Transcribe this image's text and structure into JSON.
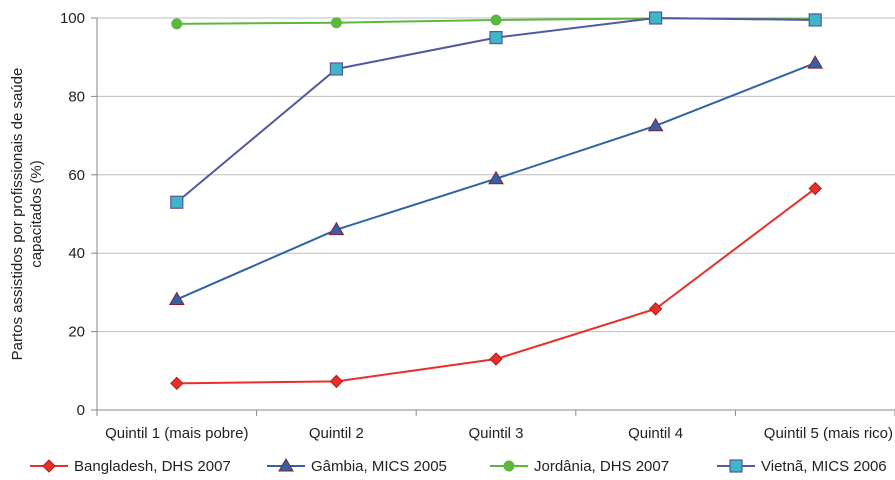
{
  "chart_data": {
    "type": "line",
    "categories": [
      "Quintil 1 (mais pobre)",
      "Quintil 2",
      "Quintil 3",
      "Quintil 4",
      "Quintil 5 (mais rico)"
    ],
    "series": [
      {
        "name": "Bangladesh, DHS 2007",
        "values": [
          6.8,
          7.3,
          13.0,
          25.8,
          56.5
        ],
        "color": "#e8302a",
        "marker": "diamond"
      },
      {
        "name": "Gâmbia, MICS 2005",
        "values": [
          28.2,
          46.0,
          59.0,
          72.5,
          88.5
        ],
        "color": "#2f62a8",
        "marker": "triangle"
      },
      {
        "name": "Jordânia, DHS 2007",
        "values": [
          98.5,
          98.8,
          99.5,
          99.9,
          99.8
        ],
        "color": "#5cb83c",
        "marker": "circle"
      },
      {
        "name": "Vietnã, MICS 2006",
        "values": [
          53.0,
          87.0,
          95.0,
          100.0,
          99.5
        ],
        "color": "#5358a3",
        "marker": "square",
        "marker_fill": "#3fb5c8"
      }
    ],
    "title": "",
    "xlabel": "",
    "ylabel": "Partos assistidos por profissionais de saúde capacitados (%)",
    "ylabel_lines": [
      "Partos assistidos por profissionais de saúde",
      "capacitados (%)"
    ],
    "ylim": [
      0,
      100
    ],
    "yticks": [
      0,
      20,
      40,
      60,
      80,
      100
    ],
    "grid": "horizontal",
    "legend_position": "bottom"
  }
}
